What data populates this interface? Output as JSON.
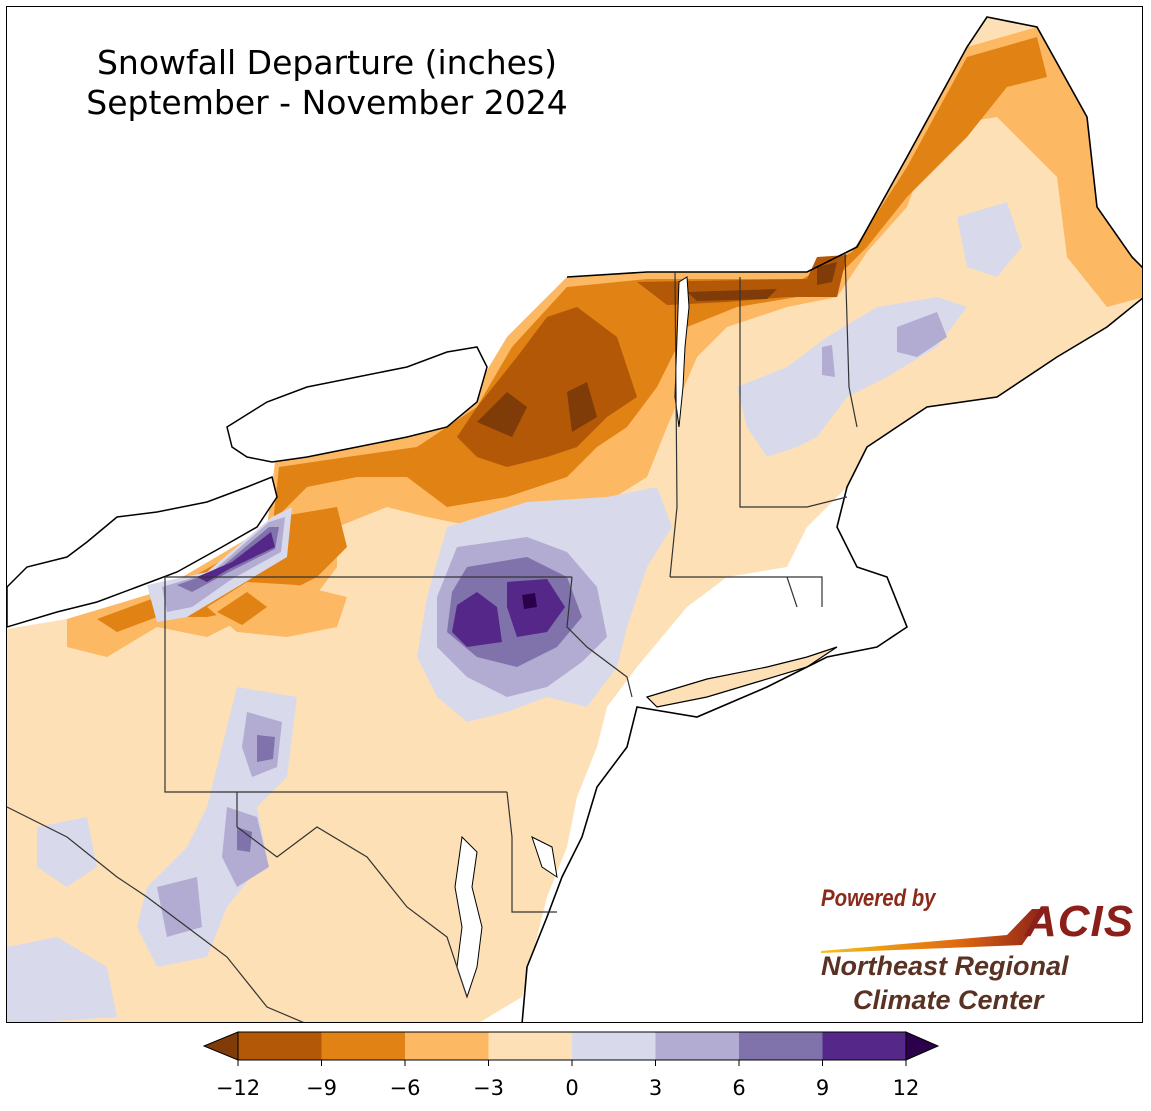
{
  "title": {
    "line1": "Snowfall Departure (inches)",
    "line2": "September - November 2024"
  },
  "credit": {
    "powered_by": "Powered by",
    "acis": "ACIS",
    "org_line1": "Northeast Regional",
    "org_line2": "Climate Center"
  },
  "colorbar": {
    "ticks": [
      "−12",
      "−9",
      "−6",
      "−3",
      "0",
      "3",
      "6",
      "9",
      "12"
    ],
    "bins": [
      {
        "range": [
          -12,
          -9
        ],
        "color": "#b35806"
      },
      {
        "range": [
          -9,
          -6
        ],
        "color": "#e08214"
      },
      {
        "range": [
          -6,
          -3
        ],
        "color": "#fdb863"
      },
      {
        "range": [
          -3,
          0
        ],
        "color": "#fee0b6"
      },
      {
        "range": [
          0,
          3
        ],
        "color": "#d8daeb"
      },
      {
        "range": [
          3,
          6
        ],
        "color": "#b2abd2"
      },
      {
        "range": [
          6,
          9
        ],
        "color": "#8073ac"
      },
      {
        "range": [
          9,
          12
        ],
        "color": "#542788"
      }
    ],
    "under_color": "#7f3b08",
    "over_color": "#2d004b"
  },
  "map": {
    "background_color": "#fee0b6",
    "water_color": "#ffffff",
    "border_color": "#000000"
  }
}
